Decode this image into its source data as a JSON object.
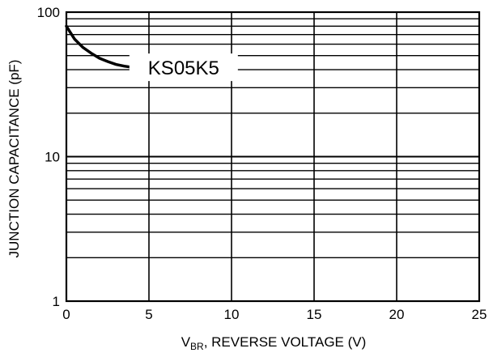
{
  "chart_data": {
    "type": "line",
    "title": "",
    "xlabel": {
      "prefix": "V",
      "subscript": "BR",
      "rest": ", REVERSE VOLTAGE (V)"
    },
    "ylabel": "JUNCTION CAPACITANCE (pF)",
    "xlim": [
      0,
      25
    ],
    "ylim": [
      1,
      100
    ],
    "yscale": "log",
    "grid": true,
    "x_ticks": [
      0,
      5,
      10,
      15,
      20,
      25
    ],
    "x_tick_labels": [
      "0",
      "5",
      "10",
      "15",
      "20",
      "25"
    ],
    "y_ticks": [
      1,
      10,
      100
    ],
    "y_tick_labels": [
      "1",
      "10",
      "100"
    ],
    "legend": "none",
    "series": [
      {
        "name": "KS05K5",
        "color": "#000000",
        "x": [
          0,
          0.25,
          0.5,
          1,
          1.5,
          2,
          2.5,
          3,
          3.5,
          4,
          4.5,
          4.8
        ],
        "y": [
          80,
          72,
          65,
          57,
          52,
          48,
          45.5,
          43.5,
          42.3,
          41.5,
          41,
          40.8
        ]
      }
    ],
    "annotations": [
      {
        "text": "KS05K5",
        "x": 7.1,
        "y": 41
      }
    ]
  }
}
